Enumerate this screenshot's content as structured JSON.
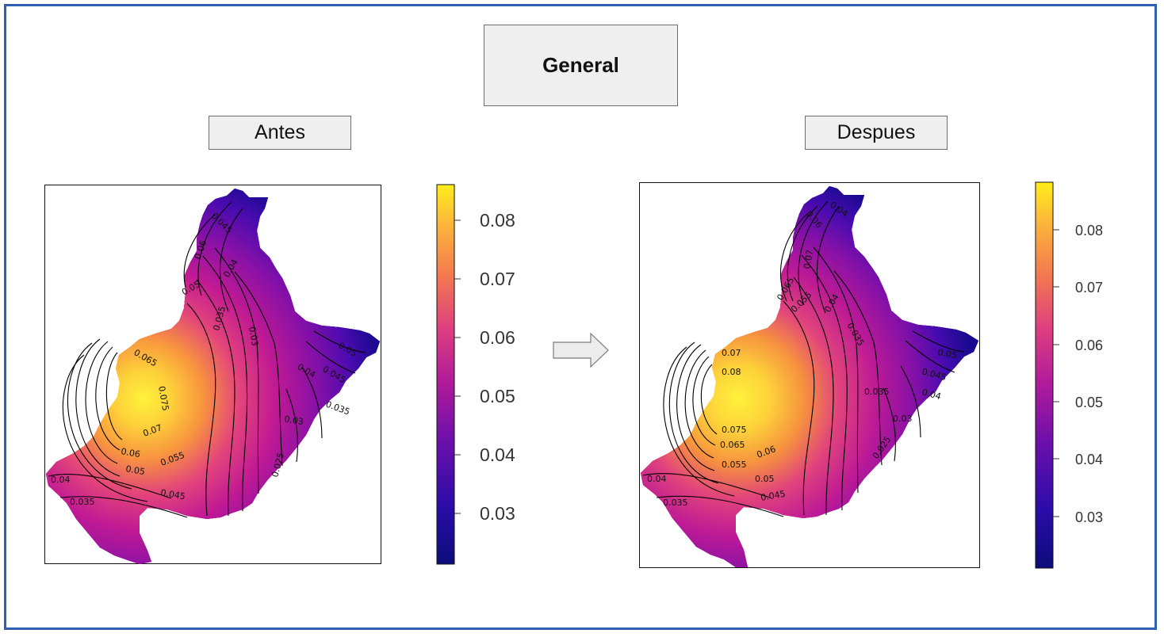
{
  "title": "General",
  "panels": {
    "before": {
      "label": "Antes",
      "colorbar_ticks": [
        "0.08",
        "0.07",
        "0.06",
        "0.05",
        "0.04",
        "0.03"
      ],
      "contour_labels": [
        "0.045",
        "0.06",
        "0.05",
        "0.04",
        "0.035",
        "0.03",
        "0.065",
        "0.075",
        "0.07",
        "0.06",
        "0.055",
        "0.05",
        "0.045",
        "0.04",
        "0.035",
        "0.025",
        "0.03",
        "0.035",
        "0.04",
        "0.045",
        "0.05"
      ]
    },
    "after": {
      "label": "Despues",
      "colorbar_ticks": [
        "0.08",
        "0.07",
        "0.06",
        "0.05",
        "0.04",
        "0.03"
      ],
      "contour_labels": [
        "0.06",
        "0.04",
        "0.07",
        "0.065",
        "0.055",
        "0.04",
        "0.035",
        "0.07",
        "0.08",
        "0.075",
        "0.065",
        "0.06",
        "0.055",
        "0.05",
        "0.045",
        "0.04",
        "0.035",
        "0.035",
        "0.03",
        "0.025",
        "0.04",
        "0.045",
        "0.05"
      ]
    }
  },
  "colors": {
    "frame": "#2e5fb0",
    "scale_low": "#0c0c7a",
    "scale_high": "#ffee1a"
  },
  "map_data": {
    "type": "contour-heatmap",
    "value_range": [
      0.022,
      0.086
    ],
    "colormap": "plasma"
  }
}
